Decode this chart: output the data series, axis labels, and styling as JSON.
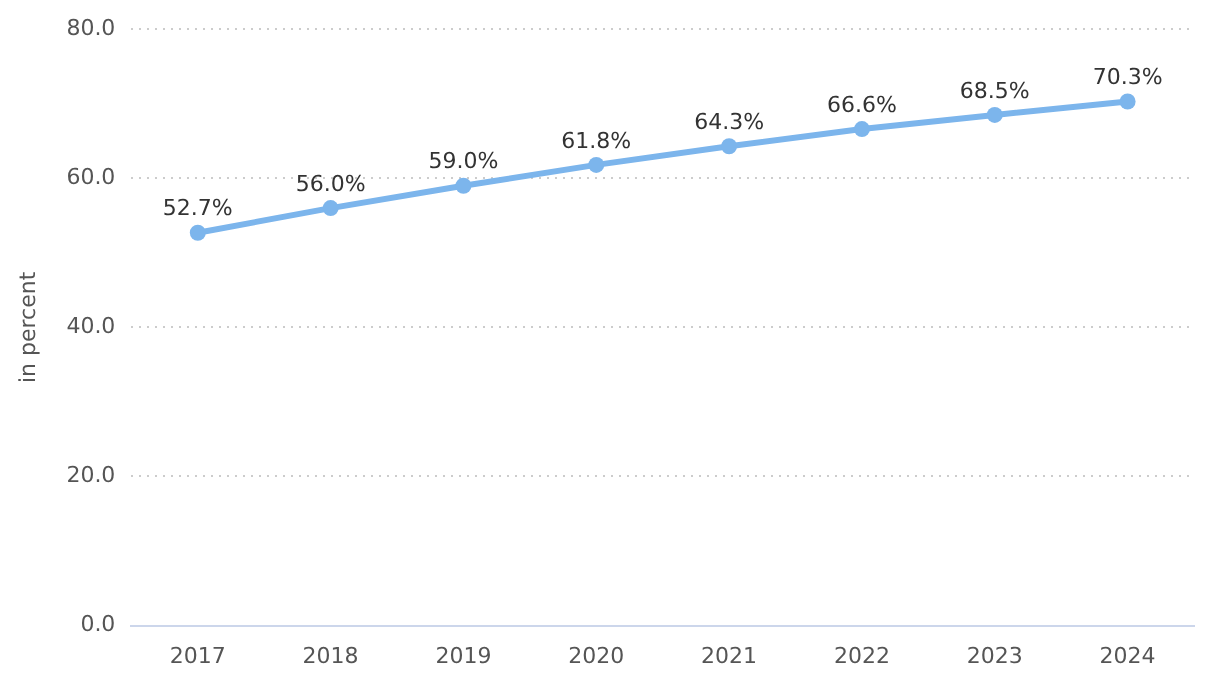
{
  "chart_data": {
    "type": "line",
    "ylabel": "in percent",
    "categories": [
      "2017",
      "2018",
      "2019",
      "2020",
      "2021",
      "2022",
      "2023",
      "2024"
    ],
    "series": [
      {
        "color": "#7cb5ec",
        "values": [
          52.7,
          56.0,
          59.0,
          61.8,
          64.3,
          66.6,
          68.5,
          70.3
        ],
        "value_labels": [
          "52.7%",
          "56.0%",
          "59.0%",
          "61.8%",
          "64.3%",
          "66.6%",
          "68.5%",
          "70.3%"
        ]
      }
    ],
    "ylim": [
      0,
      80
    ],
    "yticks": [
      {
        "value": 0,
        "label": "0.0"
      },
      {
        "value": 20,
        "label": "20.0"
      },
      {
        "value": 40,
        "label": "40.0"
      },
      {
        "value": 60,
        "label": "60.0"
      },
      {
        "value": 80,
        "label": "80.0"
      }
    ],
    "grid": "y",
    "legend": false,
    "marker": "circle",
    "line_style": "solid"
  }
}
